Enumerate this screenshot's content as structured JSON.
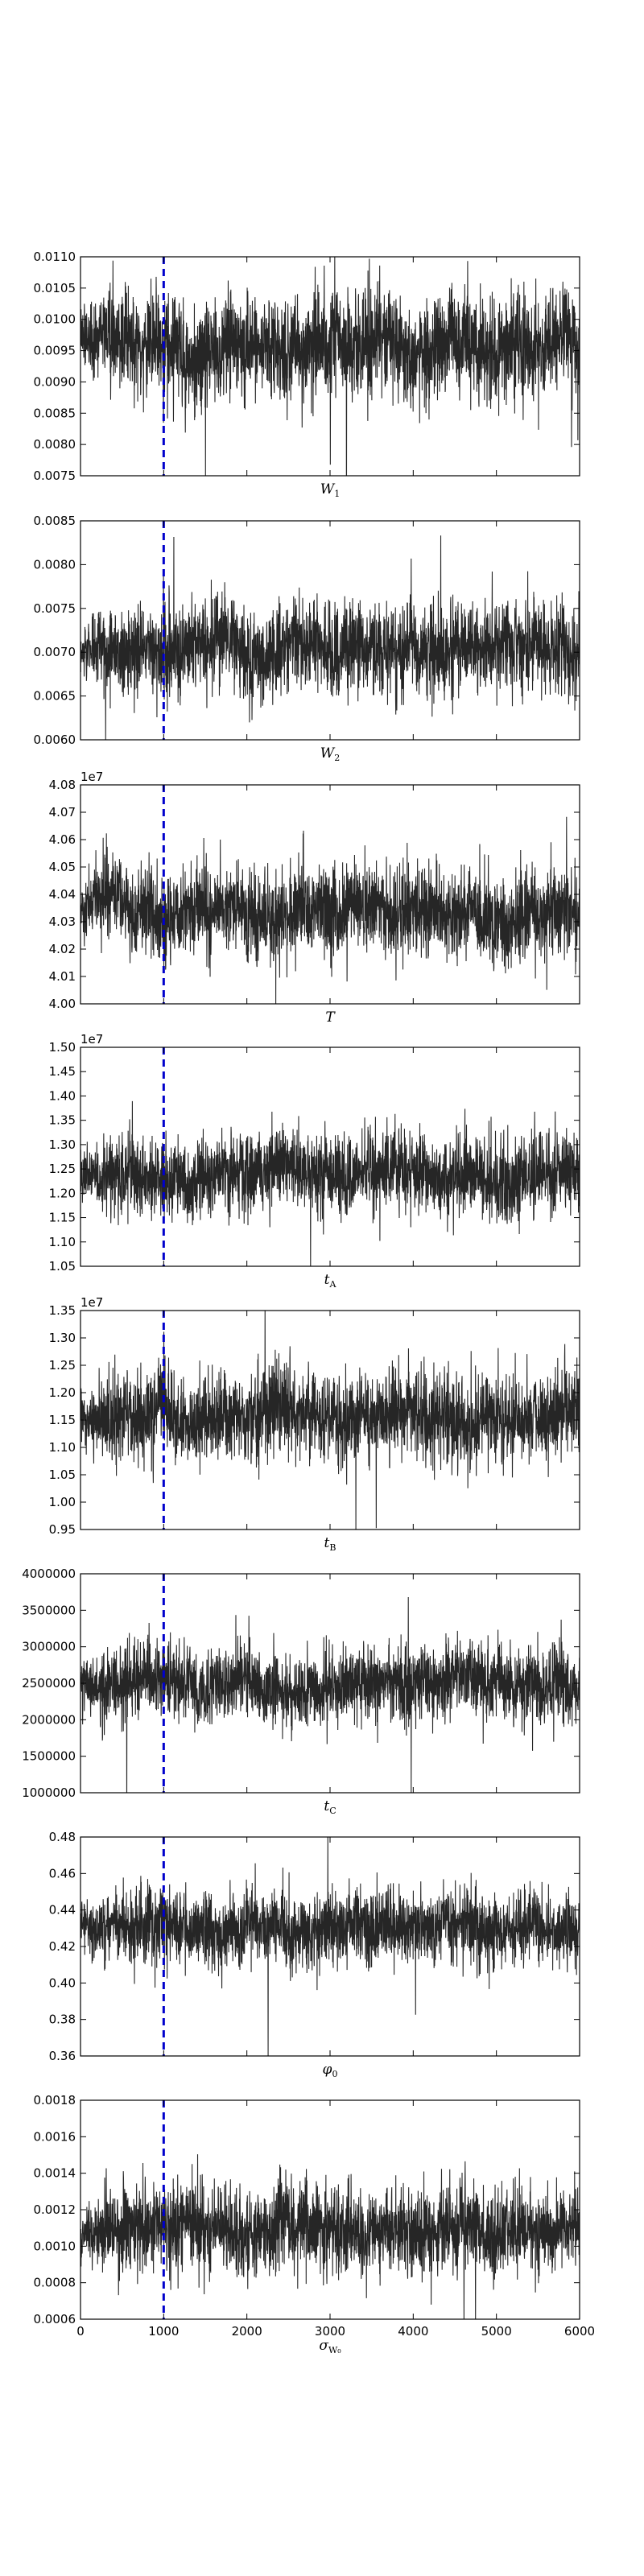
{
  "chart_data": [
    {
      "type": "line",
      "series_style": "black dense MCMC trace",
      "burn_in_x": 1000,
      "burn_in_style": "blue dashed vertical line",
      "xlim": [
        0,
        6000
      ],
      "x_ticks": [],
      "x_tick_labels": [],
      "ylim": [
        0.0075,
        0.011
      ],
      "y_ticks": [
        0.0075,
        0.008,
        0.0085,
        0.009,
        0.0095,
        0.01,
        0.0105,
        0.011
      ],
      "y_tick_labels": [
        "0.0075",
        "0.0080",
        "0.0085",
        "0.0090",
        "0.0095",
        "0.0100",
        "0.0105",
        "0.0110"
      ],
      "offset_text": "",
      "xlabel": {
        "main": "W",
        "sub": "1"
      },
      "trace": {
        "start": 0.0097,
        "mean": 0.0096,
        "spread": 0.00045
      }
    },
    {
      "type": "line",
      "series_style": "black dense MCMC trace",
      "burn_in_x": 1000,
      "burn_in_style": "blue dashed vertical line",
      "xlim": [
        0,
        6000
      ],
      "x_ticks": [],
      "x_tick_labels": [],
      "ylim": [
        0.006,
        0.0085
      ],
      "y_ticks": [
        0.006,
        0.0065,
        0.007,
        0.0075,
        0.008,
        0.0085
      ],
      "y_tick_labels": [
        "0.0060",
        "0.0065",
        "0.0070",
        "0.0075",
        "0.0080",
        "0.0085"
      ],
      "offset_text": "",
      "xlabel": {
        "main": "W",
        "sub": "2"
      },
      "trace": {
        "start": 0.007,
        "mean": 0.00705,
        "spread": 0.00028
      }
    },
    {
      "type": "line",
      "series_style": "black dense MCMC trace",
      "burn_in_x": 1000,
      "burn_in_style": "blue dashed vertical line",
      "xlim": [
        0,
        6000
      ],
      "x_ticks": [],
      "x_tick_labels": [],
      "ylim": [
        4.0,
        4.08
      ],
      "y_ticks": [
        4.0,
        4.01,
        4.02,
        4.03,
        4.04,
        4.05,
        4.06,
        4.07,
        4.08
      ],
      "y_tick_labels": [
        "4.00",
        "4.01",
        "4.02",
        "4.03",
        "4.04",
        "4.05",
        "4.06",
        "4.07",
        "4.08"
      ],
      "offset_text": "1e7",
      "xlabel": {
        "main": "T",
        "sub": ""
      },
      "trace": {
        "start": 4.035,
        "mean": 4.034,
        "spread": 0.009
      }
    },
    {
      "type": "line",
      "series_style": "black dense MCMC trace",
      "burn_in_x": 1000,
      "burn_in_style": "blue dashed vertical line",
      "xlim": [
        0,
        6000
      ],
      "x_ticks": [],
      "x_tick_labels": [],
      "ylim": [
        1.05,
        1.5
      ],
      "y_ticks": [
        1.05,
        1.1,
        1.15,
        1.2,
        1.25,
        1.3,
        1.35,
        1.4,
        1.45,
        1.5
      ],
      "y_tick_labels": [
        "1.05",
        "1.10",
        "1.15",
        "1.20",
        "1.25",
        "1.30",
        "1.35",
        "1.40",
        "1.45",
        "1.50"
      ],
      "offset_text": "1e7",
      "xlabel": {
        "main": "t",
        "sub": "A"
      },
      "trace": {
        "start": 1.24,
        "mean": 1.24,
        "spread": 0.045
      }
    },
    {
      "type": "line",
      "series_style": "black dense MCMC trace",
      "burn_in_x": 1000,
      "burn_in_style": "blue dashed vertical line",
      "xlim": [
        0,
        6000
      ],
      "x_ticks": [],
      "x_tick_labels": [],
      "ylim": [
        0.95,
        1.35
      ],
      "y_ticks": [
        0.95,
        1.0,
        1.05,
        1.1,
        1.15,
        1.2,
        1.25,
        1.3,
        1.35
      ],
      "y_tick_labels": [
        "0.95",
        "1.00",
        "1.05",
        "1.10",
        "1.15",
        "1.20",
        "1.25",
        "1.30",
        "1.35"
      ],
      "offset_text": "1e7",
      "xlabel": {
        "main": "t",
        "sub": "B"
      },
      "trace": {
        "start": 1.16,
        "mean": 1.16,
        "spread": 0.045
      }
    },
    {
      "type": "line",
      "series_style": "black dense MCMC trace",
      "burn_in_x": 1000,
      "burn_in_style": "blue dashed vertical line",
      "xlim": [
        0,
        6000
      ],
      "x_ticks": [],
      "x_tick_labels": [],
      "ylim": [
        1000000,
        4000000
      ],
      "y_ticks": [
        1000000,
        1500000,
        2000000,
        2500000,
        3000000,
        3500000,
        4000000
      ],
      "y_tick_labels": [
        "1000000",
        "1500000",
        "2000000",
        "2500000",
        "3000000",
        "3500000",
        "4000000"
      ],
      "offset_text": "",
      "xlabel": {
        "main": "t",
        "sub": "C"
      },
      "trace": {
        "start": 2450000,
        "mean": 2480000,
        "spread": 280000
      }
    },
    {
      "type": "line",
      "series_style": "black dense MCMC trace",
      "burn_in_x": 1000,
      "burn_in_style": "blue dashed vertical line",
      "xlim": [
        0,
        6000
      ],
      "x_ticks": [],
      "x_tick_labels": [],
      "ylim": [
        0.36,
        0.48
      ],
      "y_ticks": [
        0.36,
        0.38,
        0.4,
        0.42,
        0.44,
        0.46,
        0.48
      ],
      "y_tick_labels": [
        "0.36",
        "0.38",
        "0.40",
        "0.42",
        "0.44",
        "0.46",
        "0.48"
      ],
      "offset_text": "",
      "xlabel": {
        "main": "φ",
        "sub": "0"
      },
      "trace": {
        "start": 0.432,
        "mean": 0.43,
        "spread": 0.011
      }
    },
    {
      "type": "line",
      "series_style": "black dense MCMC trace",
      "burn_in_x": 1000,
      "burn_in_style": "blue dashed vertical line",
      "xlim": [
        0,
        6000
      ],
      "x_ticks": [
        0,
        1000,
        2000,
        3000,
        4000,
        5000,
        6000
      ],
      "x_tick_labels": [
        "0",
        "1000",
        "2000",
        "3000",
        "4000",
        "5000",
        "6000"
      ],
      "ylim": [
        0.0006,
        0.0018
      ],
      "y_ticks": [
        0.0006,
        0.0008,
        0.001,
        0.0012,
        0.0014,
        0.0016,
        0.0018
      ],
      "y_tick_labels": [
        "0.0006",
        "0.0008",
        "0.0010",
        "0.0012",
        "0.0014",
        "0.0016",
        "0.0018"
      ],
      "offset_text": "",
      "xlabel": {
        "main": "σ",
        "sub": "W₀"
      },
      "trace": {
        "start": 0.00105,
        "mean": 0.00108,
        "spread": 0.00013
      }
    }
  ]
}
